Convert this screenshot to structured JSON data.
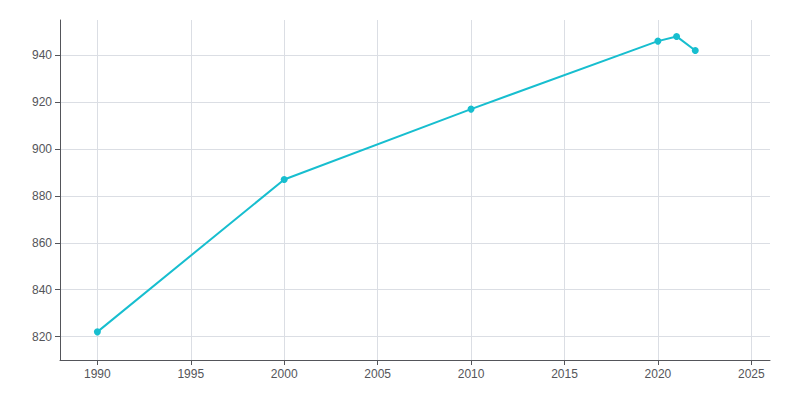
{
  "chart_data": {
    "type": "line",
    "x": [
      1990,
      2000,
      2010,
      2020,
      2021,
      2022
    ],
    "values": [
      822,
      887,
      917,
      946,
      948,
      942
    ],
    "color": "#17BECF",
    "marker": "circle",
    "xlim": [
      1988,
      2026
    ],
    "ylim": [
      810,
      955
    ],
    "xticks": [
      1990,
      1995,
      2000,
      2005,
      2010,
      2015,
      2020,
      2025
    ],
    "yticks": [
      820,
      840,
      860,
      880,
      900,
      920,
      940
    ],
    "grid": true
  }
}
